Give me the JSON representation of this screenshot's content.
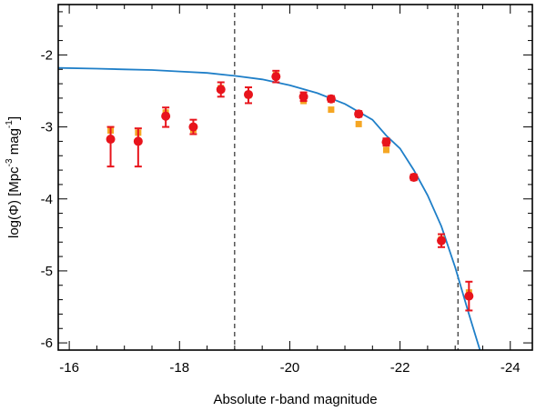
{
  "chart_data": {
    "type": "scatter",
    "xlabel": "Absolute r-band magnitude",
    "ylabel": {
      "prefix": "log(Φ) [Mpc",
      "exp1": "-3",
      "mid": " mag",
      "exp2": "-1",
      "suffix": "]"
    },
    "xlim": [
      -15.8,
      -24.4
    ],
    "ylim": [
      -6.1,
      -1.3
    ],
    "x_ticks": [
      -16,
      -18,
      -20,
      -22,
      -24
    ],
    "x_tick_labels": [
      "-16",
      "-18",
      "-20",
      "-22",
      "-24"
    ],
    "y_ticks": [
      -2,
      -3,
      -4,
      -5,
      -6
    ],
    "y_tick_labels": [
      "-2",
      "-3",
      "-4",
      "-5",
      "-6"
    ],
    "vlines": [
      -19.0,
      -23.05
    ],
    "series": [
      {
        "name": "red points",
        "marker": "circle",
        "color": "#e8141c",
        "points": [
          {
            "x": -16.75,
            "y": -3.17,
            "err_up": 0.17,
            "err_down": 0.38
          },
          {
            "x": -17.25,
            "y": -3.2,
            "err_up": 0.18,
            "err_down": 0.35
          },
          {
            "x": -17.75,
            "y": -2.85,
            "err_up": 0.12,
            "err_down": 0.15
          },
          {
            "x": -18.25,
            "y": -3.0,
            "err_up": 0.1,
            "err_down": 0.1
          },
          {
            "x": -18.75,
            "y": -2.48,
            "err_up": 0.1,
            "err_down": 0.1
          },
          {
            "x": -19.25,
            "y": -2.55,
            "err_up": 0.1,
            "err_down": 0.12
          },
          {
            "x": -19.75,
            "y": -2.3,
            "err_up": 0.08,
            "err_down": 0.08
          },
          {
            "x": -20.25,
            "y": -2.58,
            "err_up": 0.06,
            "err_down": 0.06
          },
          {
            "x": -20.75,
            "y": -2.61,
            "err_up": 0.04,
            "err_down": 0.04
          },
          {
            "x": -21.25,
            "y": -2.82,
            "err_up": 0.04,
            "err_down": 0.04
          },
          {
            "x": -21.75,
            "y": -3.21,
            "err_up": 0.05,
            "err_down": 0.05
          },
          {
            "x": -22.25,
            "y": -3.7,
            "err_up": 0.04,
            "err_down": 0.04
          },
          {
            "x": -22.75,
            "y": -4.58,
            "err_up": 0.09,
            "err_down": 0.09
          },
          {
            "x": -23.25,
            "y": -5.35,
            "err_up": 0.2,
            "err_down": 0.2
          }
        ]
      },
      {
        "name": "orange points",
        "marker": "square",
        "color": "#f5a623",
        "points": [
          {
            "x": -16.75,
            "y": -3.05
          },
          {
            "x": -17.25,
            "y": -3.08
          },
          {
            "x": -17.75,
            "y": -2.8
          },
          {
            "x": -18.25,
            "y": -3.04
          },
          {
            "x": -18.75,
            "y": -2.46
          },
          {
            "x": -19.25,
            "y": -2.56
          },
          {
            "x": -19.75,
            "y": -2.28
          },
          {
            "x": -20.25,
            "y": -2.64
          },
          {
            "x": -20.75,
            "y": -2.76
          },
          {
            "x": -21.25,
            "y": -2.96
          },
          {
            "x": -21.75,
            "y": -3.32
          },
          {
            "x": -22.25,
            "y": -3.7
          },
          {
            "x": -22.75,
            "y": -4.56
          },
          {
            "x": -23.25,
            "y": -5.3
          }
        ]
      },
      {
        "name": "model curve",
        "marker": "line",
        "color": "#1f7fc8",
        "points": [
          {
            "x": -15.8,
            "y": -2.18
          },
          {
            "x": -16.5,
            "y": -2.19
          },
          {
            "x": -17.0,
            "y": -2.2
          },
          {
            "x": -17.5,
            "y": -2.21
          },
          {
            "x": -18.0,
            "y": -2.23
          },
          {
            "x": -18.5,
            "y": -2.25
          },
          {
            "x": -19.0,
            "y": -2.29
          },
          {
            "x": -19.5,
            "y": -2.34
          },
          {
            "x": -20.0,
            "y": -2.42
          },
          {
            "x": -20.5,
            "y": -2.53
          },
          {
            "x": -21.0,
            "y": -2.68
          },
          {
            "x": -21.5,
            "y": -2.9
          },
          {
            "x": -21.75,
            "y": -3.12
          },
          {
            "x": -22.0,
            "y": -3.3
          },
          {
            "x": -22.25,
            "y": -3.6
          },
          {
            "x": -22.5,
            "y": -3.95
          },
          {
            "x": -22.75,
            "y": -4.38
          },
          {
            "x": -23.0,
            "y": -4.95
          },
          {
            "x": -23.25,
            "y": -5.6
          },
          {
            "x": -23.45,
            "y": -6.1
          }
        ]
      }
    ]
  }
}
